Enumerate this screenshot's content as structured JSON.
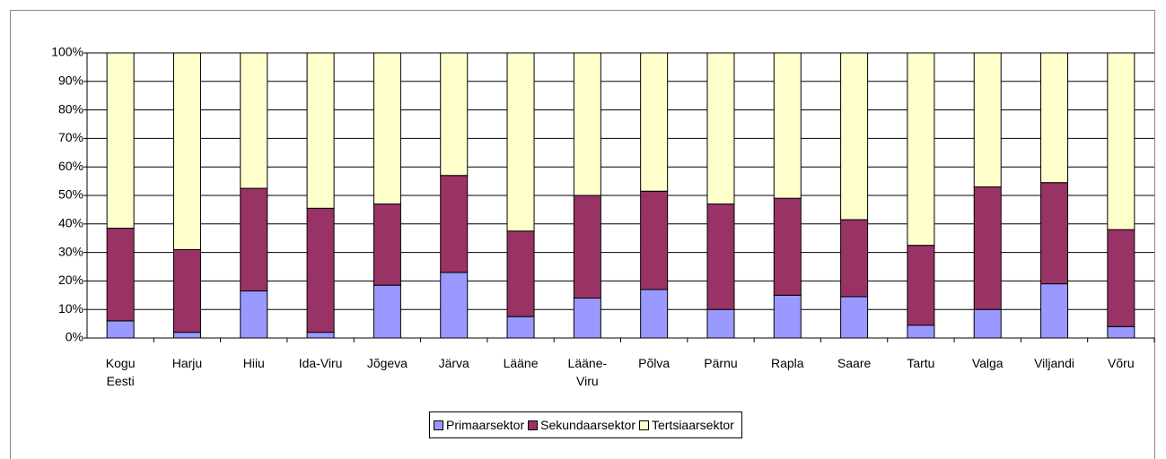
{
  "chart_data": {
    "type": "stacked_bar",
    "categories": [
      "Kogu Eesti",
      "Harju",
      "Hiiu",
      "Ida-Viru",
      "Jõgeva",
      "Järva",
      "Lääne",
      "Lääne-Viru",
      "Põlva",
      "Pärnu",
      "Rapla",
      "Saare",
      "Tartu",
      "Valga",
      "Viljandi",
      "Võru"
    ],
    "series": [
      {
        "name": "Primaarsektor",
        "color": "#9999ff",
        "values": [
          6,
          2,
          16.5,
          2,
          18.5,
          23,
          7.5,
          14,
          17,
          10,
          15,
          14.5,
          4.5,
          10,
          19,
          4
        ]
      },
      {
        "name": "Sekundaarsektor",
        "color": "#993366",
        "values": [
          32.5,
          29,
          36,
          43.5,
          28.5,
          34,
          30,
          36,
          34.5,
          37,
          34,
          27,
          28,
          43,
          35.5,
          34
        ]
      },
      {
        "name": "Tertsiaarsektor",
        "color": "#ffffcc",
        "values": [
          61.5,
          69,
          47.5,
          54.5,
          53,
          43,
          62.5,
          50,
          48.5,
          53,
          51,
          58.5,
          67.5,
          47,
          45.5,
          62
        ]
      }
    ],
    "ylim": [
      0,
      100
    ],
    "yticks": [
      {
        "value": 0,
        "label": "0%"
      },
      {
        "value": 10,
        "label": "10%"
      },
      {
        "value": 20,
        "label": "20%"
      },
      {
        "value": 30,
        "label": "30%"
      },
      {
        "value": 40,
        "label": "40%"
      },
      {
        "value": 50,
        "label": "50%"
      },
      {
        "value": 60,
        "label": "60%"
      },
      {
        "value": 70,
        "label": "70%"
      },
      {
        "value": 80,
        "label": "80%"
      },
      {
        "value": 90,
        "label": "90%"
      },
      {
        "value": 100,
        "label": "100%"
      }
    ],
    "grid": true,
    "legend": "bottom"
  }
}
